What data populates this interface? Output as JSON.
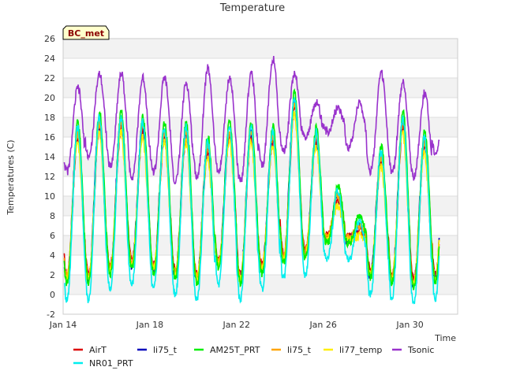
{
  "chart_data": {
    "type": "line",
    "title": "Temperature",
    "xlabel": "Time",
    "ylabel": "Temperatures (C)",
    "badge": "BC_met",
    "xlim": [
      0,
      18.2
    ],
    "ylim": [
      -2,
      26
    ],
    "yticks": [
      -2,
      0,
      2,
      4,
      6,
      8,
      10,
      12,
      14,
      16,
      18,
      20,
      22,
      24,
      26
    ],
    "xticks": [
      {
        "label": "Jan 14",
        "day": 0
      },
      {
        "label": "Jan 18",
        "day": 4
      },
      {
        "label": "Jan 22",
        "day": 8
      },
      {
        "label": "Jan 26",
        "day": 12
      },
      {
        "label": "Jan 30",
        "day": 16
      }
    ],
    "grid": true,
    "legend_placement": "bottom",
    "daily": [
      {
        "day": 0,
        "min": 1.5,
        "max": 16.5
      },
      {
        "day": 1,
        "min": 1.5,
        "max": 17.5
      },
      {
        "day": 2,
        "min": 2.5,
        "max": 17.5
      },
      {
        "day": 3,
        "min": 3.0,
        "max": 17.0
      },
      {
        "day": 4,
        "min": 2.5,
        "max": 16.5
      },
      {
        "day": 5,
        "min": 2.0,
        "max": 16.5
      },
      {
        "day": 6,
        "min": 1.5,
        "max": 15.0
      },
      {
        "day": 7,
        "min": 3.0,
        "max": 16.5
      },
      {
        "day": 8,
        "min": 1.5,
        "max": 16.5
      },
      {
        "day": 9,
        "min": 2.5,
        "max": 16.0
      },
      {
        "day": 10,
        "min": 3.5,
        "max": 19.5
      },
      {
        "day": 11,
        "min": 4.0,
        "max": 16.0
      },
      {
        "day": 12,
        "min": 5.5,
        "max": 10.0
      },
      {
        "day": 13,
        "min": 5.5,
        "max": 7.0
      },
      {
        "day": 14,
        "min": 2.0,
        "max": 14.0
      },
      {
        "day": 15,
        "min": 1.5,
        "max": 17.5
      },
      {
        "day": 16,
        "min": 1.0,
        "max": 15.5
      },
      {
        "day": 17,
        "min": 1.5,
        "max": 17.5
      }
    ],
    "series": [
      {
        "name": "AirT",
        "color": "#dd0000",
        "offset_min": 0.5,
        "offset_max": -0.5
      },
      {
        "name": "NR01_PRT",
        "color": "#00eeee",
        "offset_min": -2.0,
        "offset_max": 0.5
      },
      {
        "name": "li75_t",
        "color": "#0000bb",
        "offset_min": 0.0,
        "offset_max": 0.0
      },
      {
        "name": "AM25T_PRT",
        "color": "#00ee00",
        "offset_min": -0.3,
        "offset_max": 1.0
      },
      {
        "name": "li75_t",
        "color": "#ffa500",
        "offset_min": 0.3,
        "offset_max": 0.0
      },
      {
        "name": "li77_temp",
        "color": "#ffee00",
        "offset_min": 0.0,
        "offset_max": -1.0
      },
      {
        "name": "Tsonic",
        "color": "#9932cc",
        "offset_min": 11.0,
        "offset_max": 5.5
      }
    ],
    "tsonic_daily": [
      {
        "day": 0,
        "min": 12.5,
        "max": 21.0
      },
      {
        "day": 1,
        "min": 14.0,
        "max": 22.5
      },
      {
        "day": 2,
        "min": 13.0,
        "max": 22.5
      },
      {
        "day": 3,
        "min": 12.0,
        "max": 22.0
      },
      {
        "day": 4,
        "min": 12.5,
        "max": 22.0
      },
      {
        "day": 5,
        "min": 11.5,
        "max": 21.5
      },
      {
        "day": 6,
        "min": 12.0,
        "max": 23.0
      },
      {
        "day": 7,
        "min": 12.5,
        "max": 22.0
      },
      {
        "day": 8,
        "min": 11.5,
        "max": 22.5
      },
      {
        "day": 9,
        "min": 13.0,
        "max": 24.0
      },
      {
        "day": 10,
        "min": 14.5,
        "max": 22.5
      },
      {
        "day": 11,
        "min": 16.0,
        "max": 19.5
      },
      {
        "day": 12,
        "min": 16.5,
        "max": 19.0
      },
      {
        "day": 13,
        "min": 15.0,
        "max": 19.5
      },
      {
        "day": 14,
        "min": 12.5,
        "max": 22.5
      },
      {
        "day": 15,
        "min": 12.5,
        "max": 21.5
      },
      {
        "day": 16,
        "min": 12.0,
        "max": 20.5
      },
      {
        "day": 17,
        "min": 14.5,
        "max": 20.0
      }
    ]
  }
}
